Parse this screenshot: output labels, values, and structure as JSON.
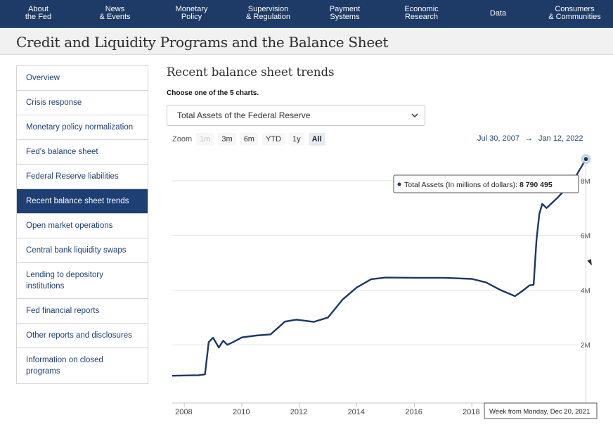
{
  "nav": {
    "items": [
      {
        "label": "About\nthe Fed"
      },
      {
        "label": "News\n& Events"
      },
      {
        "label": "Monetary\nPolicy"
      },
      {
        "label": "Supervision\n& Regulation"
      },
      {
        "label": "Payment\nSystems"
      },
      {
        "label": "Economic\nResearch"
      },
      {
        "label": "Data"
      },
      {
        "label": "Consumers\n& Communities"
      }
    ]
  },
  "page": {
    "title": "Credit and Liquidity Programs and the Balance Sheet"
  },
  "sidebar": {
    "items": [
      {
        "label": "Overview"
      },
      {
        "label": "Crisis response"
      },
      {
        "label": "Monetary policy normalization"
      },
      {
        "label": "Fed's balance sheet"
      },
      {
        "label": "Federal Reserve liabilities"
      },
      {
        "label": "Recent balance sheet trends",
        "active": true
      },
      {
        "label": "Open market operations"
      },
      {
        "label": "Central bank liquidity swaps"
      },
      {
        "label": "Lending to depository institutions"
      },
      {
        "label": "Fed financial reports"
      },
      {
        "label": "Other reports and disclosures"
      },
      {
        "label": "Information on closed programs"
      }
    ]
  },
  "main": {
    "section_title": "Recent balance sheet trends",
    "choose_label": "Choose one of the 5 charts.",
    "select": {
      "value": "Total Assets of the Federal Reserve"
    },
    "zoom": {
      "label": "Zoom",
      "buttons": [
        {
          "label": "1m",
          "state": "disabled"
        },
        {
          "label": "3m",
          "state": "normal"
        },
        {
          "label": "6m",
          "state": "normal"
        },
        {
          "label": "YTD",
          "state": "normal"
        },
        {
          "label": "1y",
          "state": "normal"
        },
        {
          "label": "All",
          "state": "selected"
        }
      ]
    },
    "range": {
      "from": "Jul 30, 2007",
      "arrow": "→",
      "to": "Jan 12, 2022"
    }
  },
  "tooltip": {
    "series_label": "Total Assets (In millions of dollars): ",
    "value": "8 790 495",
    "date_label": "Week from Monday, Dec 20, 2021"
  },
  "colors": {
    "nav_bg": "#1e3a66",
    "active_bg": "#1e3f74",
    "line": "#1c3864",
    "link": "#1f3f72"
  },
  "chart_data": {
    "type": "line",
    "series": [
      {
        "name": "Total Assets (In millions of dollars)",
        "x": [
          2007.58,
          2008.0,
          2008.5,
          2008.72,
          2008.85,
          2009.0,
          2009.2,
          2009.35,
          2009.5,
          2009.7,
          2010.0,
          2010.5,
          2011.0,
          2011.5,
          2011.9,
          2012.5,
          2013.0,
          2013.5,
          2014.0,
          2014.5,
          2015.0,
          2016.0,
          2017.0,
          2018.0,
          2018.5,
          2019.0,
          2019.5,
          2019.75,
          2020.0,
          2020.15,
          2020.25,
          2020.35,
          2020.45,
          2020.6,
          2021.0,
          2021.5,
          2021.97
        ],
        "y": [
          870000,
          880000,
          890000,
          920000,
          2100000,
          2260000,
          1900000,
          2150000,
          2000000,
          2100000,
          2270000,
          2340000,
          2380000,
          2850000,
          2920000,
          2840000,
          3000000,
          3650000,
          4100000,
          4400000,
          4460000,
          4450000,
          4450000,
          4410000,
          4280000,
          4000000,
          3780000,
          3960000,
          4170000,
          4200000,
          5850000,
          6800000,
          7150000,
          7000000,
          7400000,
          7950000,
          8790495
        ]
      }
    ],
    "y_tick_labels": [
      "2M",
      "4M",
      "6M",
      "8M"
    ],
    "y_ticks": [
      2000000,
      4000000,
      6000000,
      8000000
    ],
    "x_tick_labels": [
      "2008",
      "2010",
      "2012",
      "2014",
      "2016",
      "2018"
    ],
    "x_ticks": [
      2008,
      2010,
      2012,
      2014,
      2016,
      2018
    ],
    "xlim": [
      2007.58,
      2022.03
    ],
    "ylim": [
      0,
      9000000
    ],
    "grid": true,
    "highlight_point": {
      "x": 2021.97,
      "y": 8790495
    }
  }
}
